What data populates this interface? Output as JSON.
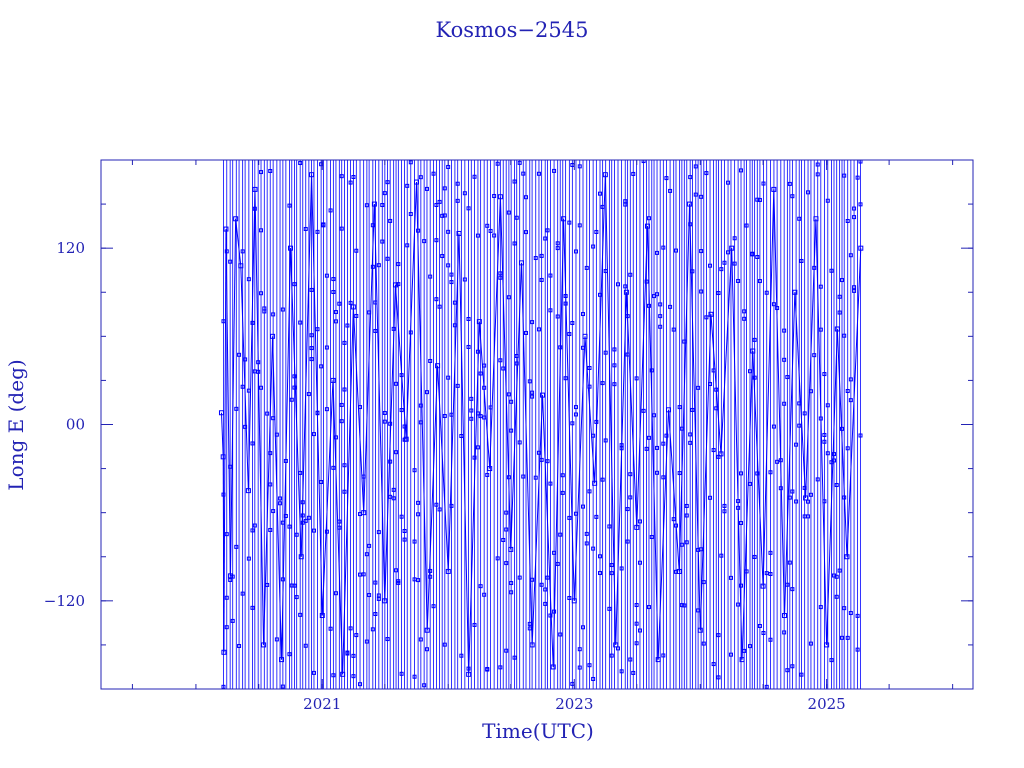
{
  "chart_data": {
    "type": "line",
    "title": "Kosmos−2545",
    "xlabel": "Time(UTC)",
    "ylabel": "Long E (deg)",
    "x_range": [
      "2019-04-01",
      "2026-03-01"
    ],
    "ylim": [
      -180,
      180
    ],
    "x_ticks": [
      {
        "date": "2021-01-01",
        "label": "2021"
      },
      {
        "date": "2023-01-01",
        "label": "2023"
      },
      {
        "date": "2025-01-01",
        "label": "2025"
      }
    ],
    "y_ticks": [
      {
        "value": 120,
        "label": "120"
      },
      {
        "value": 0,
        "label": "00"
      },
      {
        "value": -120,
        "label": "−120"
      }
    ],
    "grid": false,
    "legend": "none",
    "colors": {
      "series": "#0000ff",
      "axes": "#2323b4"
    },
    "series": [
      {
        "x_start": "2020-03-15",
        "x_end": "2025-04-10",
        "points_per_orbit_segment": "fast-drifting ground-track longitude, wrapping at +/-180",
        "points": [
          [
            "2020-03-15",
            8
          ],
          [
            "2020-03-20",
            -22
          ],
          [
            "2020-03-22",
            -155
          ],
          [
            "2020-03-28",
            133
          ],
          [
            "2020-04-10",
            -103
          ],
          [
            "2020-04-25",
            140
          ],
          [
            "2020-05-10",
            108
          ],
          [
            "2020-06-01",
            -45
          ],
          [
            "2020-06-20",
            160
          ],
          [
            "2020-07-15",
            -150
          ],
          [
            "2020-08-10",
            60
          ],
          [
            "2020-09-05",
            -160
          ],
          [
            "2020-10-01",
            120
          ],
          [
            "2020-11-01",
            -90
          ],
          [
            "2020-12-01",
            170
          ],
          [
            "2021-01-01",
            -130
          ],
          [
            "2021-02-01",
            30
          ],
          [
            "2021-03-01",
            -170
          ],
          [
            "2021-04-01",
            80
          ],
          [
            "2021-05-01",
            -60
          ],
          [
            "2021-06-01",
            150
          ],
          [
            "2021-07-01",
            -120
          ],
          [
            "2021-08-01",
            95
          ],
          [
            "2021-09-01",
            -10
          ],
          [
            "2021-10-01",
            165
          ],
          [
            "2021-11-01",
            -140
          ],
          [
            "2021-12-01",
            40
          ],
          [
            "2022-01-01",
            -100
          ],
          [
            "2022-02-01",
            130
          ],
          [
            "2022-03-01",
            -170
          ],
          [
            "2022-04-01",
            70
          ],
          [
            "2022-05-01",
            -30
          ],
          [
            "2022-06-01",
            155
          ],
          [
            "2022-07-01",
            -85
          ],
          [
            "2022-08-01",
            110
          ],
          [
            "2022-09-01",
            -150
          ],
          [
            "2022-10-01",
            20
          ],
          [
            "2022-11-01",
            -165
          ],
          [
            "2022-12-01",
            140
          ],
          [
            "2023-01-01",
            -120
          ],
          [
            "2023-02-01",
            60
          ],
          [
            "2023-03-01",
            -40
          ],
          [
            "2023-04-01",
            170
          ],
          [
            "2023-05-01",
            -150
          ],
          [
            "2023-06-01",
            90
          ],
          [
            "2023-07-01",
            -70
          ],
          [
            "2023-08-01",
            135
          ],
          [
            "2023-09-01",
            -160
          ],
          [
            "2023-10-01",
            10
          ],
          [
            "2023-11-01",
            -100
          ],
          [
            "2023-12-01",
            150
          ],
          [
            "2024-01-01",
            -140
          ],
          [
            "2024-02-01",
            75
          ],
          [
            "2024-03-01",
            -20
          ],
          [
            "2024-04-01",
            120
          ],
          [
            "2024-05-01",
            -160
          ],
          [
            "2024-06-01",
            50
          ],
          [
            "2024-07-01",
            -110
          ],
          [
            "2024-08-01",
            160
          ],
          [
            "2024-09-01",
            -130
          ],
          [
            "2024-10-01",
            90
          ],
          [
            "2024-11-01",
            -50
          ],
          [
            "2024-12-01",
            140
          ],
          [
            "2025-01-01",
            -150
          ],
          [
            "2025-02-01",
            65
          ],
          [
            "2025-03-01",
            -90
          ],
          [
            "2025-04-10",
            120
          ]
        ]
      }
    ]
  }
}
